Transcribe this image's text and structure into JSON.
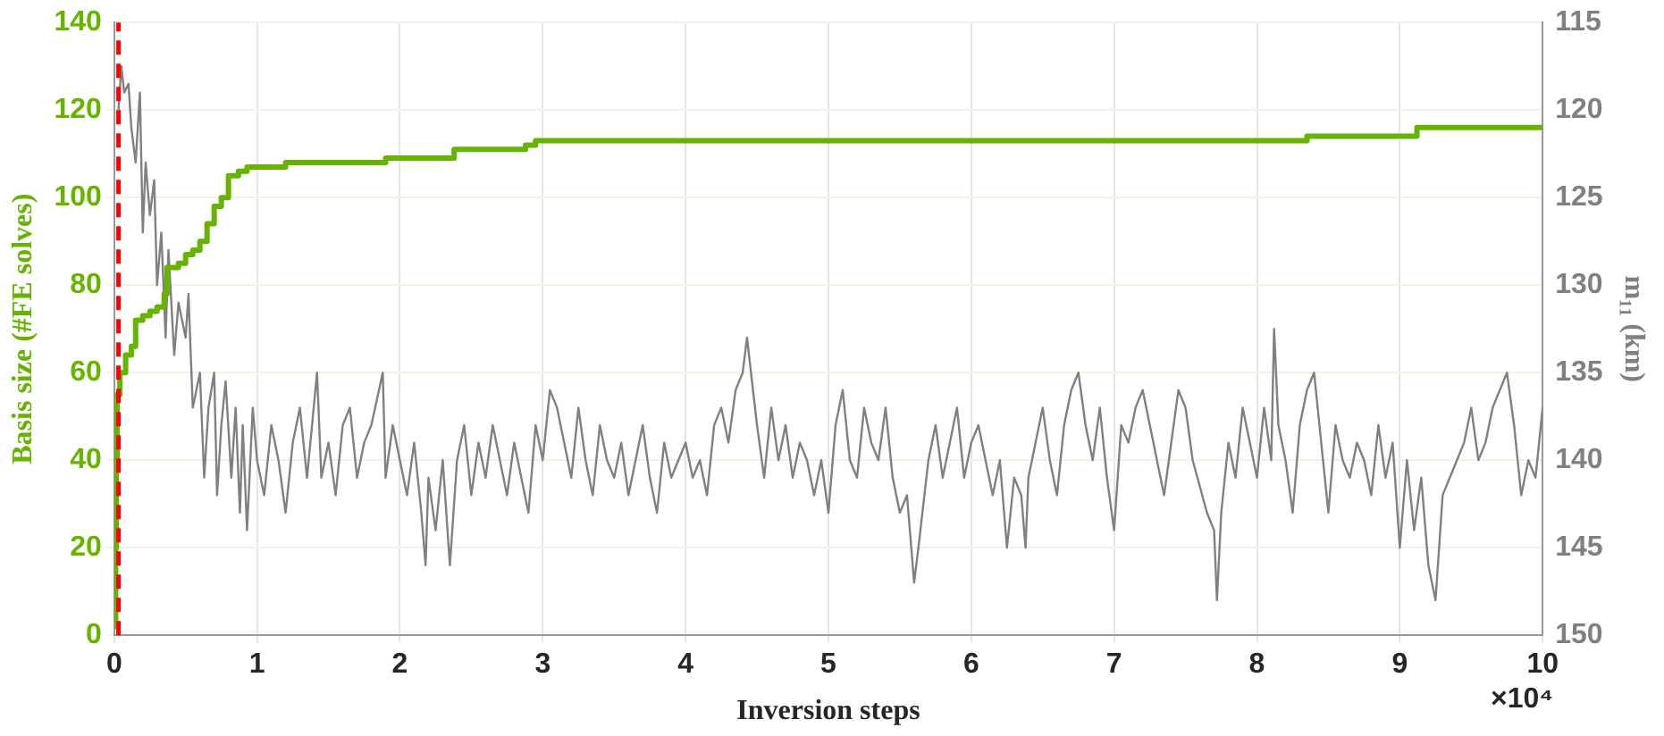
{
  "chart_data": {
    "type": "line",
    "xlabel": "Inversion steps",
    "ylabel": "Basis size (#FE solves)",
    "y2label": "m₁₁ (km)",
    "xlim": [
      0,
      10
    ],
    "xticks": [
      0,
      1,
      2,
      3,
      4,
      5,
      6,
      7,
      8,
      9,
      10
    ],
    "ylim": [
      0,
      140
    ],
    "yticks": [
      0,
      20,
      40,
      60,
      80,
      100,
      120,
      140
    ],
    "y2lim": [
      150,
      115
    ],
    "y2ticks": [
      115,
      120,
      125,
      130,
      135,
      140,
      145,
      150
    ],
    "grid": true,
    "legend": false,
    "annotations": [
      "×10⁴"
    ],
    "ref_lines": [
      {
        "axis": "x",
        "value": 0.03,
        "label": null,
        "color": "#ff0000",
        "line_style": "dashed"
      }
    ],
    "series": [
      {
        "type": "step",
        "color": "#66b300",
        "x": [
          0.005,
          0.01,
          0.015,
          0.02,
          0.04,
          0.08,
          0.12,
          0.15,
          0.2,
          0.25,
          0.3,
          0.35,
          0.37,
          0.45,
          0.5,
          0.55,
          0.6,
          0.65,
          0.7,
          0.75,
          0.8,
          0.87,
          0.93,
          1.2,
          1.9,
          2.38,
          2.88,
          2.95,
          8.35,
          9.12,
          10
        ],
        "values": [
          2,
          20,
          40,
          55,
          60,
          64,
          66,
          72,
          73,
          74,
          75,
          78,
          84,
          85,
          87,
          88,
          90,
          94,
          98,
          100,
          105,
          106,
          107,
          108,
          109,
          111,
          112,
          113,
          114,
          116,
          116
        ]
      },
      {
        "type": "line",
        "axis": "y2",
        "color": "#808080",
        "x": [
          0.03,
          0.05,
          0.07,
          0.1,
          0.12,
          0.15,
          0.18,
          0.2,
          0.22,
          0.25,
          0.28,
          0.3,
          0.33,
          0.36,
          0.38,
          0.42,
          0.45,
          0.5,
          0.52,
          0.55,
          0.6,
          0.63,
          0.66,
          0.7,
          0.72,
          0.75,
          0.78,
          0.82,
          0.85,
          0.88,
          0.9,
          0.93,
          0.97,
          1.0,
          1.05,
          1.1,
          1.15,
          1.2,
          1.25,
          1.3,
          1.35,
          1.42,
          1.45,
          1.5,
          1.55,
          1.6,
          1.65,
          1.7,
          1.75,
          1.8,
          1.88,
          1.9,
          1.95,
          2.0,
          2.05,
          2.1,
          2.15,
          2.18,
          2.2,
          2.25,
          2.3,
          2.35,
          2.4,
          2.45,
          2.5,
          2.55,
          2.6,
          2.65,
          2.7,
          2.75,
          2.8,
          2.85,
          2.9,
          2.95,
          3.0,
          3.05,
          3.1,
          3.15,
          3.2,
          3.25,
          3.3,
          3.35,
          3.4,
          3.45,
          3.5,
          3.55,
          3.6,
          3.65,
          3.7,
          3.75,
          3.8,
          3.85,
          3.9,
          3.95,
          4.0,
          4.05,
          4.1,
          4.15,
          4.2,
          4.25,
          4.3,
          4.35,
          4.4,
          4.43,
          4.5,
          4.55,
          4.6,
          4.65,
          4.7,
          4.75,
          4.8,
          4.85,
          4.9,
          4.95,
          5.0,
          5.05,
          5.1,
          5.15,
          5.2,
          5.25,
          5.3,
          5.35,
          5.4,
          5.45,
          5.5,
          5.55,
          5.6,
          5.63,
          5.7,
          5.75,
          5.8,
          5.85,
          5.9,
          5.95,
          6.0,
          6.05,
          6.1,
          6.15,
          6.2,
          6.25,
          6.3,
          6.35,
          6.38,
          6.4,
          6.45,
          6.5,
          6.55,
          6.6,
          6.65,
          6.7,
          6.75,
          6.8,
          6.85,
          6.9,
          6.95,
          7.0,
          7.05,
          7.1,
          7.15,
          7.2,
          7.25,
          7.3,
          7.35,
          7.4,
          7.45,
          7.5,
          7.55,
          7.65,
          7.7,
          7.72,
          7.75,
          7.8,
          7.85,
          7.9,
          7.95,
          8.0,
          8.05,
          8.1,
          8.12,
          8.15,
          8.2,
          8.25,
          8.3,
          8.35,
          8.4,
          8.45,
          8.5,
          8.55,
          8.6,
          8.65,
          8.7,
          8.75,
          8.8,
          8.85,
          8.9,
          8.95,
          9.0,
          9.05,
          9.1,
          9.15,
          9.2,
          9.25,
          9.3,
          9.35,
          9.4,
          9.45,
          9.5,
          9.55,
          9.6,
          9.65,
          9.7,
          9.75,
          9.8,
          9.85,
          9.9,
          9.95,
          10.0
        ],
        "values": [
          120,
          117.5,
          119,
          118.5,
          121,
          123,
          119,
          127,
          123,
          126,
          124,
          130,
          127,
          133,
          128,
          134,
          131,
          133,
          130.5,
          137,
          135,
          141,
          137,
          135,
          142,
          138,
          135.5,
          141,
          137,
          143,
          138,
          144,
          137,
          140,
          142,
          138,
          140,
          143,
          139,
          137,
          141,
          135,
          141,
          139,
          142,
          138,
          137,
          141,
          139,
          138,
          135,
          141,
          138,
          140,
          142,
          139,
          143,
          146,
          141,
          144,
          140,
          146,
          140,
          138,
          142,
          139,
          141,
          138,
          140,
          142,
          139,
          141,
          143,
          138,
          140,
          136,
          137,
          139,
          141,
          137,
          140,
          142,
          138,
          140,
          141,
          139,
          142,
          140,
          138,
          141,
          143,
          139,
          141,
          140,
          139,
          141,
          140,
          142,
          138,
          137,
          139,
          136,
          135,
          133,
          138,
          141,
          137,
          140,
          138,
          141,
          139,
          140,
          142,
          140,
          143,
          138,
          136,
          140,
          141,
          137,
          139,
          140,
          137,
          141,
          143,
          142,
          147,
          145,
          140,
          138,
          141,
          139,
          137,
          141,
          139,
          138,
          140,
          142,
          140,
          145,
          141,
          142,
          145,
          141,
          139,
          137,
          140,
          142,
          138,
          136,
          135,
          138,
          140,
          137,
          141,
          144,
          138,
          139,
          137,
          136,
          138,
          140,
          142,
          139,
          136,
          137,
          140,
          143,
          144,
          148,
          143,
          139,
          141,
          137,
          139,
          141,
          137,
          140,
          132.5,
          138,
          140,
          143,
          138,
          136,
          135,
          139,
          143,
          138,
          140,
          141,
          139,
          140,
          142,
          138,
          141,
          139,
          145,
          140,
          144,
          141,
          146,
          148,
          142,
          141,
          140,
          139,
          137,
          140,
          139,
          137,
          136,
          135,
          138,
          142,
          140,
          141,
          137
        ]
      }
    ]
  }
}
